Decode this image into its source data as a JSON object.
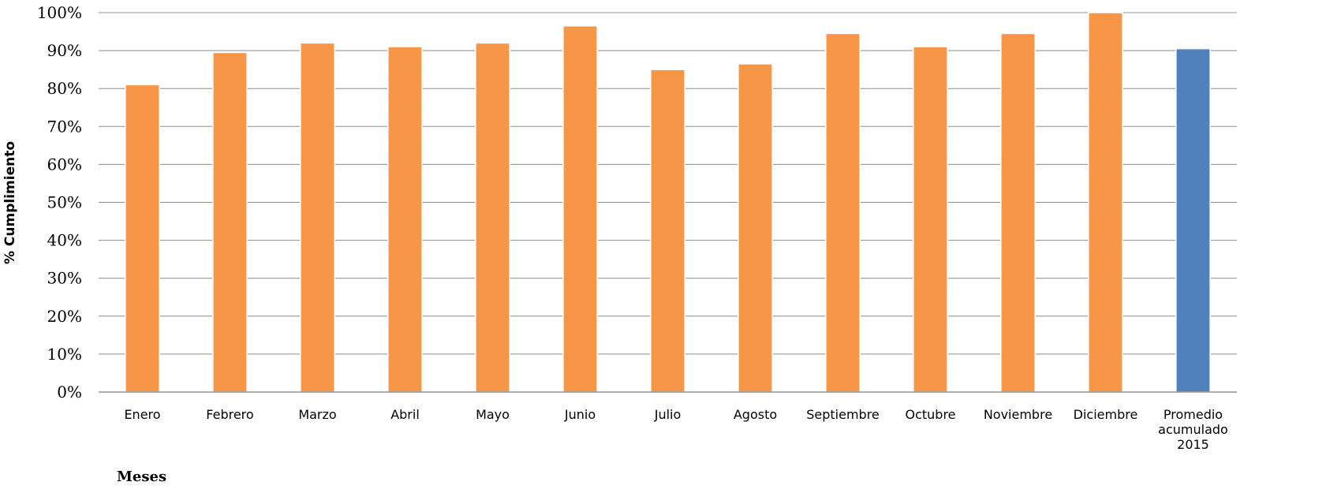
{
  "chart_data": {
    "type": "bar",
    "categories": [
      "Enero",
      "Febrero",
      "Marzo",
      "Abril",
      "Mayo",
      "Junio",
      "Julio",
      "Agosto",
      "Septiembre",
      "Octubre",
      "Noviembre",
      "Diciembre",
      "Promedio acumulado 2015"
    ],
    "category_lines": [
      [
        "Enero"
      ],
      [
        "Febrero"
      ],
      [
        "Marzo"
      ],
      [
        "Abril"
      ],
      [
        "Mayo"
      ],
      [
        "Junio"
      ],
      [
        "Julio"
      ],
      [
        "Agosto"
      ],
      [
        "Septiembre"
      ],
      [
        "Octubre"
      ],
      [
        "Noviembre"
      ],
      [
        "Diciembre"
      ],
      [
        "Promedio",
        "acumulado",
        "2015"
      ]
    ],
    "values": [
      81,
      89.5,
      92,
      91,
      92,
      96.5,
      85,
      86.5,
      94.5,
      91,
      94.5,
      100,
      90.5
    ],
    "bar_colors": [
      "#F79646",
      "#F79646",
      "#F79646",
      "#F79646",
      "#F79646",
      "#F79646",
      "#F79646",
      "#F79646",
      "#F79646",
      "#F79646",
      "#F79646",
      "#F79646",
      "#4F81BD"
    ],
    "title": "",
    "xlabel": "Meses",
    "ylabel": "% Cumplimiento",
    "ylim": [
      0,
      100
    ],
    "yticks": [
      0,
      10,
      20,
      30,
      40,
      50,
      60,
      70,
      80,
      90,
      100
    ],
    "ytick_labels": [
      "0%",
      "10%",
      "20%",
      "30%",
      "40%",
      "50%",
      "60%",
      "70%",
      "80%",
      "90%",
      "100%"
    ],
    "grid": true,
    "legend": "none"
  }
}
